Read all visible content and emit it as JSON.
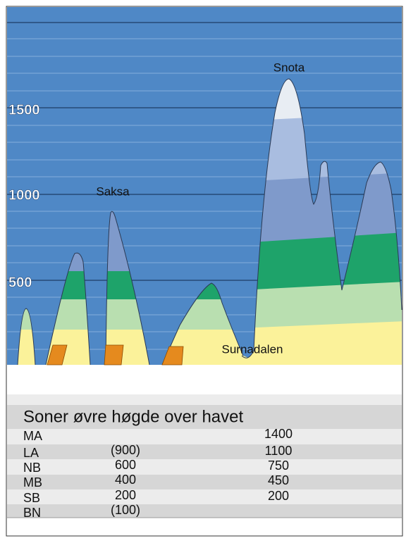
{
  "diagram": {
    "y_labels": [
      1500,
      1000,
      500
    ],
    "peak_labels": [
      "Snota",
      "Saksa"
    ],
    "valley_label": "Surnadalen"
  },
  "table": {
    "title": "Soner øvre høgde over havet",
    "rows": [
      {
        "zone": "MA",
        "right": 1400
      },
      {
        "zone": "LA",
        "left": "(900)",
        "right": 1100
      },
      {
        "zone": "NB",
        "left": 600,
        "right": 750
      },
      {
        "zone": "MB",
        "left": 400,
        "right": 450
      },
      {
        "zone": "SB",
        "left": 200,
        "right": 200
      },
      {
        "zone": "BN",
        "left": "(100)"
      }
    ]
  }
}
